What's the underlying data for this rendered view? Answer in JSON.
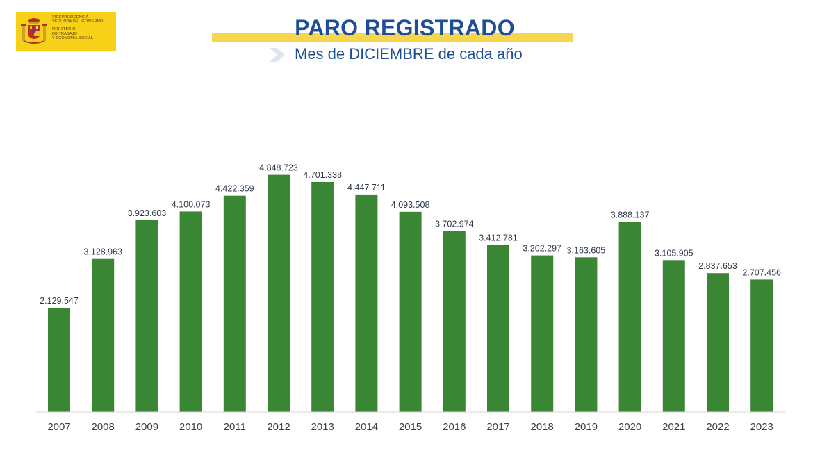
{
  "logo": {
    "lines": [
      "VICEPRESIDENCIA",
      "SEGUNDA DEL GOBIERNO",
      "MINISTERIO",
      "DE TRABAJO",
      "Y ECONOMÍA SOCIAL"
    ]
  },
  "header": {
    "title": "PARO REGISTRADO",
    "subtitle": "Mes de DICIEMBRE de cada año"
  },
  "colors": {
    "bar": "#3a8635",
    "title": "#1e4f96",
    "accent_yellow": "#f7d54d"
  },
  "chart_data": {
    "type": "bar",
    "title": "PARO REGISTRADO",
    "subtitle": "Mes de DICIEMBRE de cada año",
    "xlabel": "",
    "ylabel": "",
    "ylim": [
      0,
      5000000
    ],
    "grid": false,
    "categories": [
      "2007",
      "2008",
      "2009",
      "2010",
      "2011",
      "2012",
      "2013",
      "2014",
      "2015",
      "2016",
      "2017",
      "2018",
      "2019",
      "2020",
      "2021",
      "2022",
      "2023"
    ],
    "values": [
      2129547,
      3128963,
      3923603,
      4100073,
      4422359,
      4848723,
      4701338,
      4447711,
      4093508,
      3702974,
      3412781,
      3202297,
      3163605,
      3888137,
      3105905,
      2837653,
      2707456
    ],
    "value_labels": [
      "2.129.547",
      "3.128.963",
      "3.923.603",
      "4.100.073",
      "4.422.359",
      "4.848.723",
      "4.701.338",
      "4.447.711",
      "4.093.508",
      "3.702.974",
      "3.412.781",
      "3.202.297",
      "3.163.605",
      "3.888.137",
      "3.105.905",
      "2.837.653",
      "2.707.456"
    ]
  }
}
